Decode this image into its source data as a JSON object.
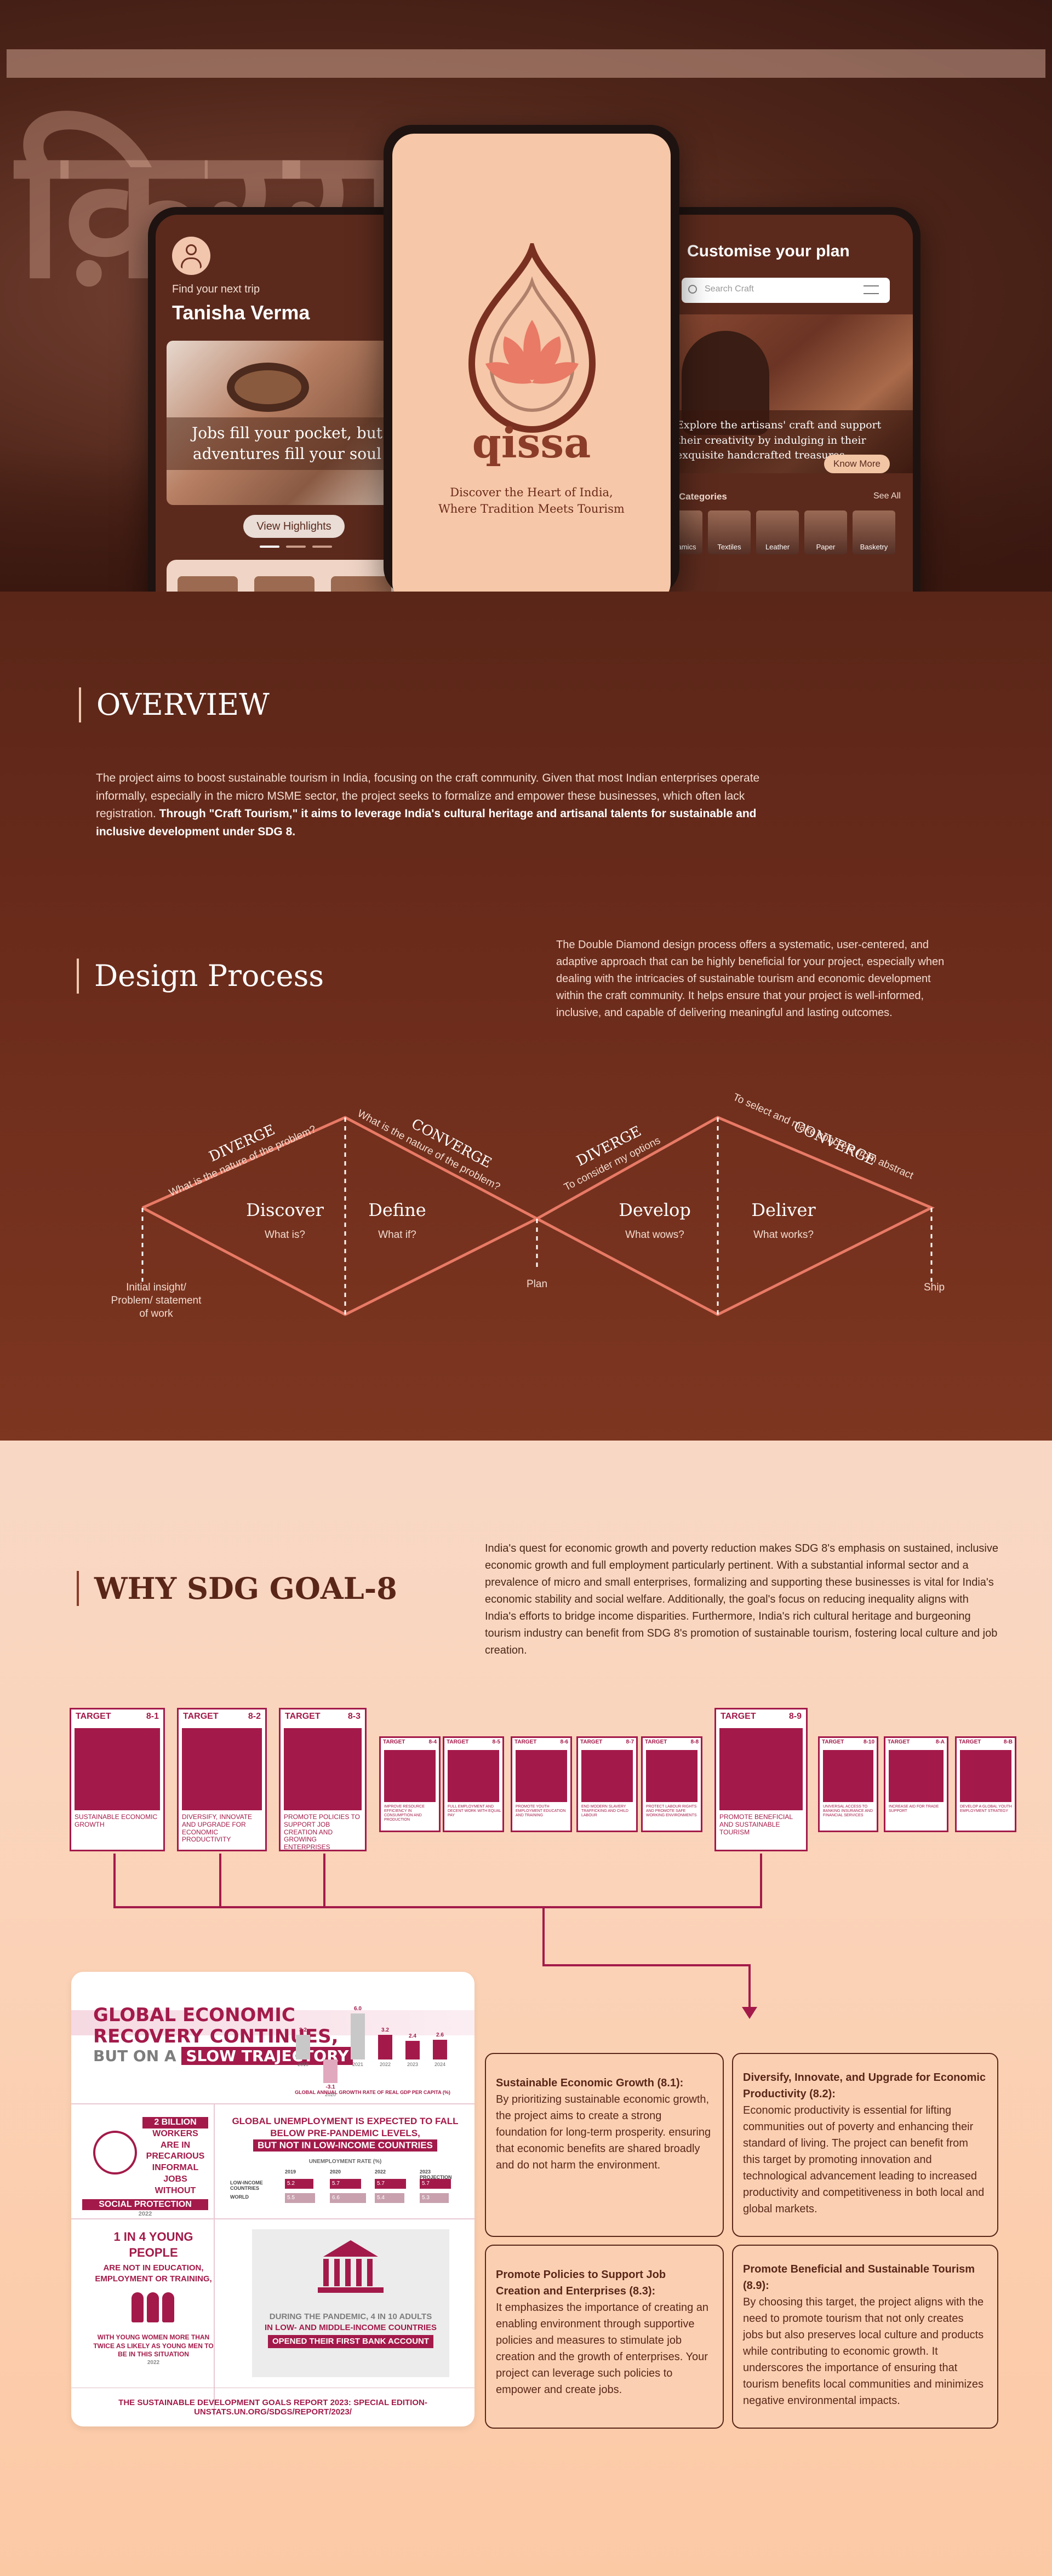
{
  "hero": {
    "background_word": "क़िस्सा",
    "left_phone": {
      "find_trip": "Find your next trip",
      "user_name": "Tanisha Verma",
      "tagline": "Jobs fill your pocket, but adventures fill your soul",
      "view_button": "View Highlights"
    },
    "center_phone": {
      "logo_text": "qissa",
      "tagline_line1": "Discover the Heart of India,",
      "tagline_line2": "Where Tradition Meets Tourism"
    },
    "right_phone": {
      "title": "Customise your plan",
      "search_placeholder": "Search Craft",
      "promo_text": "Explore the artisans' craft and support their creativity by indulging in their exquisite handcrafted treasures.",
      "know_more": "Know More",
      "categories_label": "Categories",
      "see_all": "See All",
      "categories": [
        "Ceramics",
        "Textiles",
        "Leather",
        "Paper",
        "Basketry"
      ]
    }
  },
  "overview": {
    "heading": "OVERVIEW",
    "text_plain": "The project aims to boost sustainable tourism in India, focusing on the craft community. Given that most Indian enterprises operate informally, especially in the micro MSME sector, the project seeks to formalize and empower these businesses, which often lack registration. ",
    "text_bold": "Through \"Craft Tourism,\" it aims to leverage India's cultural heritage and artisanal talents for sustainable and inclusive development under SDG 8."
  },
  "design_process": {
    "heading": "Design Process",
    "description": "The Double Diamond design process offers a systematic, user-centered, and adaptive approach that can be highly beneficial for your project, especially when dealing with the intricacies of sustainable tourism and economic development within the craft community. It helps ensure that your project is well-informed, inclusive, and capable of delivering meaningful and lasting outcomes.",
    "phases": [
      {
        "name": "Discover",
        "question": "What is?"
      },
      {
        "name": "Define",
        "question": "What if?"
      },
      {
        "name": "Develop",
        "question": "What wows?"
      },
      {
        "name": "Deliver",
        "question": "What works?"
      }
    ],
    "diverge_label": "DIVERGE",
    "converge_label": "CONVERGE",
    "arc_texts": [
      "What is the nature of the problem?",
      "What is the nature of the problem?",
      "To consider my options",
      "To select and make concrete from abstract"
    ],
    "start_label_1": "Initial insight/",
    "start_label_2": "Problem/ statement",
    "start_label_3": "of work",
    "mid_label": "Plan",
    "end_label": "Ship"
  },
  "sdg": {
    "heading": "WHY SDG GOAL-8",
    "description": "India's quest for economic growth and poverty reduction makes SDG 8's emphasis on sustained, inclusive economic growth and full employment particularly pertinent. With a substantial informal sector and a prevalence of micro and small enterprises, formalizing and supporting these businesses is vital for India's economic stability and social welfare. Additionally, the goal's focus on reducing inequality aligns with India's efforts to bridge income disparities. Furthermore, India's rich cultural heritage and burgeoning tourism industry can benefit from SDG 8's promotion of sustainable tourism, fostering local culture and job creation.",
    "targets": [
      {
        "num": "8-1",
        "text": "Sustainable economic growth"
      },
      {
        "num": "8-2",
        "text": "Diversify, innovate and upgrade for economic productivity"
      },
      {
        "num": "8-3",
        "text": "Promote policies to support job creation and growing enterprises"
      },
      {
        "num": "8-4",
        "text": "Improve resource efficiency in consumption and production"
      },
      {
        "num": "8-5",
        "text": "Full employment and decent work with equal pay"
      },
      {
        "num": "8-6",
        "text": "Promote youth employment education and training"
      },
      {
        "num": "8-7",
        "text": "End modern slavery trafficking and child labour"
      },
      {
        "num": "8-8",
        "text": "Protect labour rights and promote safe working environments"
      },
      {
        "num": "8-9",
        "text": "Promote beneficial and sustainable tourism"
      },
      {
        "num": "8-10",
        "text": "Universal access to banking insurance and financial services"
      },
      {
        "num": "8-A",
        "text": "Increase aid for trade support"
      },
      {
        "num": "8-B",
        "text": "Develop a global youth employment strategy"
      }
    ],
    "target_word": "TARGET",
    "infographic": {
      "title_line1": "GLOBAL ECONOMIC",
      "title_line2": "RECOVERY CONTINUES,",
      "title_line3_plain": "BUT ON A ",
      "title_line3_highlight": "SLOW TRAJECTORY",
      "bar_values": [
        "3.2",
        "-3.1",
        "6.0",
        "3.2",
        "2.4",
        "2.6"
      ],
      "bar_years": [
        "2019",
        "2020",
        "2021",
        "2022",
        "2023",
        "2024"
      ],
      "growth_caption": "GLOBAL ANNUAL GROWTH RATE OF REAL GDP PER CAPITA (%)",
      "workers_text1": "2 BILLION",
      "workers_text2": "WORKERS",
      "workers_text3": "ARE IN PRECARIOUS INFORMAL JOBS WITHOUT",
      "workers_text4": "SOCIAL PROTECTION",
      "workers_year": "2022",
      "unemployment_title": "GLOBAL UNEMPLOYMENT IS EXPECTED TO FALL BELOW PRE-PANDEMIC LEVELS,",
      "unemployment_highlight": "BUT NOT IN LOW-INCOME COUNTRIES",
      "unemployment_caption": "UNEMPLOYMENT RATE (%)",
      "unemp_cols": [
        "2019",
        "2020",
        "2022",
        "2023 PROJECTION"
      ],
      "unemp_rows": [
        {
          "label": "LOW-INCOME COUNTRIES",
          "values": [
            "5.2",
            "5.7",
            "5.7",
            "5.7"
          ]
        },
        {
          "label": "WORLD",
          "values": [
            "5.5",
            "6.6",
            "5.4",
            "5.3"
          ]
        }
      ],
      "young_title": "1 IN 4 YOUNG PEOPLE",
      "young_sub": "ARE NOT IN EDUCATION, EMPLOYMENT OR TRAINING,",
      "young_women": "WITH YOUNG WOMEN MORE THAN TWICE AS LIKELY AS YOUNG MEN TO BE IN THIS SITUATION",
      "young_year": "2022",
      "bank_text1": "DURING THE PANDEMIC, 4 IN 10 ADULTS",
      "bank_text2": "IN LOW- AND MIDDLE-INCOME COUNTRIES",
      "bank_highlight": "OPENED THEIR FIRST BANK ACCOUNT",
      "footer": "THE SUSTAINABLE DEVELOPMENT GOALS REPORT 2023: SPECIAL EDITION- UNSTATS.UN.ORG/SDGS/REPORT/2023/"
    },
    "target_details": [
      {
        "title": "Sustainable Economic Growth (8.1):",
        "body": "By prioritizing sustainable economic growth, the project aims to create a strong foundation for long-term prosperity. ensuring that economic benefits are shared broadly and do not harm the environment."
      },
      {
        "title": "Diversify, Innovate, and Upgrade for Economic Productivity (8.2):",
        "body": "Economic productivity is essential for lifting communities out of poverty and enhancing their standard of living. The project can benefit from this target by promoting innovation and technological advancement leading to increased productivity and competitiveness in both local and global markets."
      },
      {
        "title": "Promote Policies to Support Job Creation and Enterprises (8.3):",
        "body": "It emphasizes the importance of creating an enabling environment through supportive policies and measures to stimulate job creation and the growth of enterprises. Your project can leverage such policies to empower and create jobs."
      },
      {
        "title": "Promote Beneficial and Sustainable Tourism (8.9):",
        "body": "By choosing this target, the project aligns with the need to promote tourism that not only creates jobs but also preserves local culture and products while contributing to economic growth. It underscores the importance of ensuring that tourism benefits local communities and minimizes negative environmental impacts."
      }
    ]
  },
  "colors": {
    "brown_dark": "#5a2618",
    "sdg_maroon": "#a31a4a",
    "peach": "#fbd0b2",
    "coral": "#e87a66"
  }
}
